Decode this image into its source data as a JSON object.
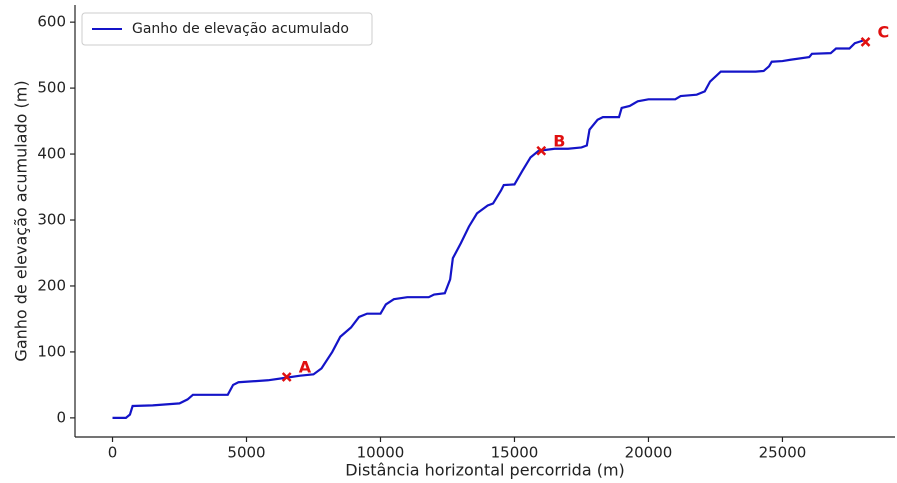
{
  "chart_data": {
    "type": "line",
    "xlabel": "Distância horizontal percorrida (m)",
    "ylabel": "Ganho de elevação acumulado (m)",
    "x": [
      0,
      500,
      650,
      750,
      1500,
      2500,
      2800,
      3000,
      4300,
      4500,
      4700,
      5800,
      6500,
      7000,
      7500,
      7800,
      8200,
      8500,
      8900,
      9200,
      9500,
      10000,
      10200,
      10500,
      11000,
      11800,
      12000,
      12400,
      12600,
      12700,
      13000,
      13300,
      13600,
      14000,
      14200,
      14500,
      14600,
      15000,
      15300,
      15600,
      15900,
      16500,
      17000,
      17500,
      17700,
      17800,
      18100,
      18300,
      18900,
      19000,
      19300,
      19600,
      20000,
      21000,
      21200,
      21800,
      22100,
      22300,
      22700,
      24000,
      24300,
      24500,
      24600,
      25000,
      25300,
      26000,
      26100,
      26800,
      27000,
      27500,
      27700,
      28000
    ],
    "series": [
      {
        "name": "Ganho de elevação acumulado",
        "color": "#1414c8",
        "values": [
          0,
          0,
          5,
          18,
          19,
          22,
          28,
          35,
          35,
          50,
          54,
          57,
          61,
          64,
          66,
          75,
          100,
          123,
          137,
          153,
          158,
          158,
          172,
          180,
          183,
          183,
          187,
          189,
          210,
          242,
          265,
          290,
          310,
          322,
          325,
          345,
          353,
          354,
          375,
          395,
          405,
          408,
          408,
          410,
          413,
          437,
          452,
          456,
          456,
          470,
          473,
          480,
          483,
          483,
          488,
          490,
          495,
          510,
          525,
          525,
          526,
          533,
          540,
          541,
          543,
          547,
          552,
          553,
          560,
          560,
          568,
          572
        ]
      }
    ],
    "markers": [
      {
        "label": "A",
        "x": 6500,
        "y": 62
      },
      {
        "label": "B",
        "x": 16000,
        "y": 405
      },
      {
        "label": "C",
        "x": 28100,
        "y": 570
      }
    ],
    "marker_color": "#e01010",
    "xlim": [
      -1400,
      29200
    ],
    "ylim": [
      -29,
      626
    ],
    "xticks": [
      0,
      5000,
      10000,
      15000,
      20000,
      25000
    ],
    "yticks": [
      0,
      100,
      200,
      300,
      400,
      500,
      600
    ],
    "legend": "upper-left"
  }
}
